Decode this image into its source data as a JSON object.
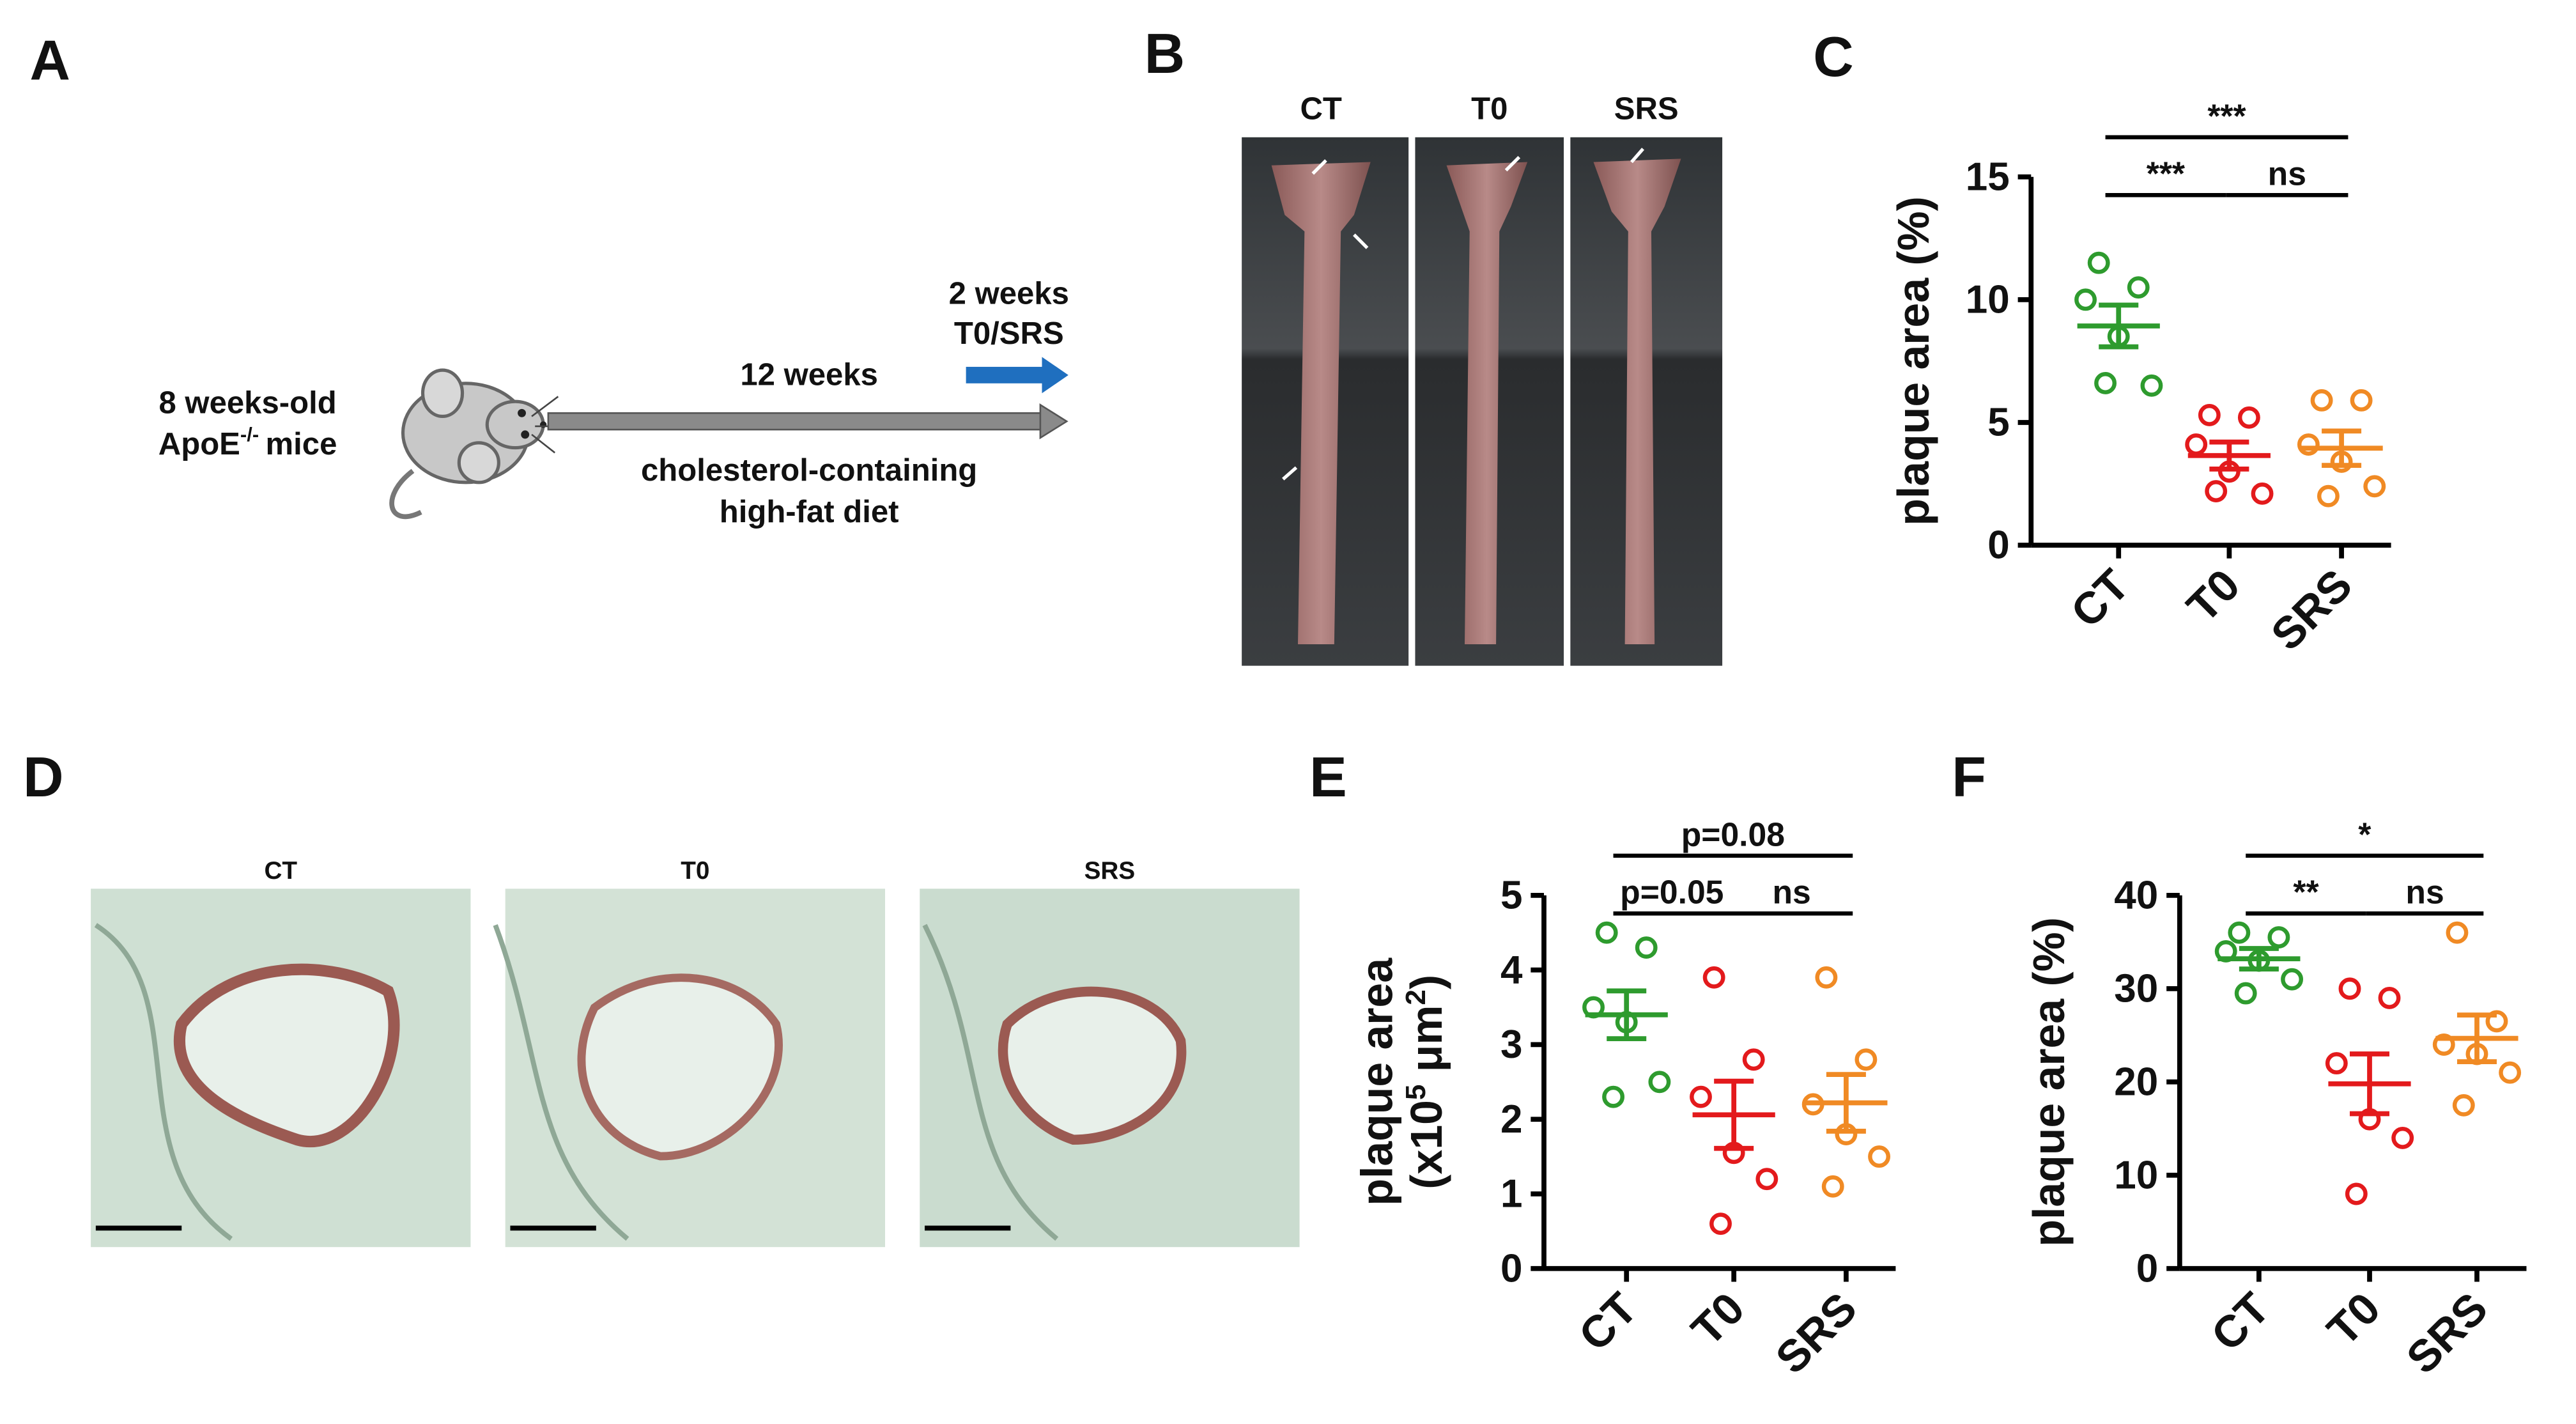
{
  "panel_labels": [
    "A",
    "B",
    "C",
    "D",
    "E",
    "F"
  ],
  "schematic": {
    "mouse_line_1": "8 weeks-old",
    "mouse_line_2": [
      "ApoE",
      "-/-",
      "mice"
    ],
    "duration": "12 weeks",
    "treatment": [
      "2 weeks",
      "T0/SRS"
    ],
    "diet": [
      "cholesterol-containing",
      "high-fat diet"
    ]
  },
  "en_face": {
    "labels": [
      "CT",
      "T0",
      "SRS"
    ]
  },
  "histology": {
    "labels": [
      "CT",
      "T0",
      "SRS"
    ]
  },
  "chart_data": [
    {
      "type": "dot",
      "ylabel": [
        "plaque area (%)"
      ],
      "categories": [
        "CT",
        "T0",
        "SRS"
      ],
      "colors": [
        "#2e9b2e",
        "#e31a1c",
        "#f08a24"
      ],
      "values": [
        [
          11.5,
          10.5,
          10.0,
          8.5,
          6.5,
          6.6
        ],
        [
          5.3,
          5.2,
          4.1,
          3.0,
          2.1,
          2.2
        ],
        [
          5.9,
          5.9,
          4.1,
          3.4,
          2.4,
          2.0
        ]
      ],
      "means": [
        8.93,
        3.65,
        3.95
      ],
      "sems": [
        0.85,
        0.55,
        0.7
      ],
      "ylim": [
        0,
        15
      ],
      "yticks": [
        0,
        5,
        10,
        15
      ],
      "brackets": [
        {
          "from": 0,
          "to": 2,
          "label": "***"
        },
        {
          "from": 0,
          "to": 1,
          "label": "***"
        },
        {
          "from": 1,
          "to": 2,
          "label": "ns"
        }
      ]
    },
    {
      "type": "dot",
      "ylabel": [
        "plaque area",
        [
          "(x10",
          "5",
          " μm",
          "2",
          ")"
        ]
      ],
      "categories": [
        "CT",
        "T0",
        "SRS"
      ],
      "colors": [
        "#2e9b2e",
        "#e31a1c",
        "#f08a24"
      ],
      "values": [
        [
          4.5,
          4.3,
          3.5,
          3.3,
          2.5,
          2.3
        ],
        [
          3.9,
          2.8,
          2.3,
          1.55,
          1.2,
          0.6
        ],
        [
          3.9,
          2.8,
          2.2,
          1.8,
          1.5,
          1.1
        ]
      ],
      "means": [
        3.4,
        2.06,
        2.22
      ],
      "sems": [
        0.32,
        0.45,
        0.38
      ],
      "ylim": [
        0,
        5
      ],
      "yticks": [
        0,
        1,
        2,
        3,
        4,
        5
      ],
      "brackets": [
        {
          "from": 0,
          "to": 2,
          "label": "p=0.08"
        },
        {
          "from": 0,
          "to": 1,
          "label": "p=0.05"
        },
        {
          "from": 1,
          "to": 2,
          "label": "ns"
        }
      ]
    },
    {
      "type": "dot",
      "ylabel": [
        "plaque area (%)"
      ],
      "categories": [
        "CT",
        "T0",
        "SRS"
      ],
      "colors": [
        "#2e9b2e",
        "#e31a1c",
        "#f08a24"
      ],
      "values": [
        [
          36,
          35.5,
          34,
          33,
          31,
          29.5
        ],
        [
          30,
          29,
          22,
          16,
          14,
          8
        ],
        [
          36,
          26.5,
          24,
          23,
          21,
          17.5
        ]
      ],
      "means": [
        33.2,
        19.8,
        24.67
      ],
      "sems": [
        1.1,
        3.2,
        2.5
      ],
      "ylim": [
        0,
        40
      ],
      "yticks": [
        0,
        10,
        20,
        30,
        40
      ],
      "brackets": [
        {
          "from": 0,
          "to": 2,
          "label": "*"
        },
        {
          "from": 0,
          "to": 1,
          "label": "**"
        },
        {
          "from": 1,
          "to": 2,
          "label": "ns"
        }
      ]
    }
  ]
}
